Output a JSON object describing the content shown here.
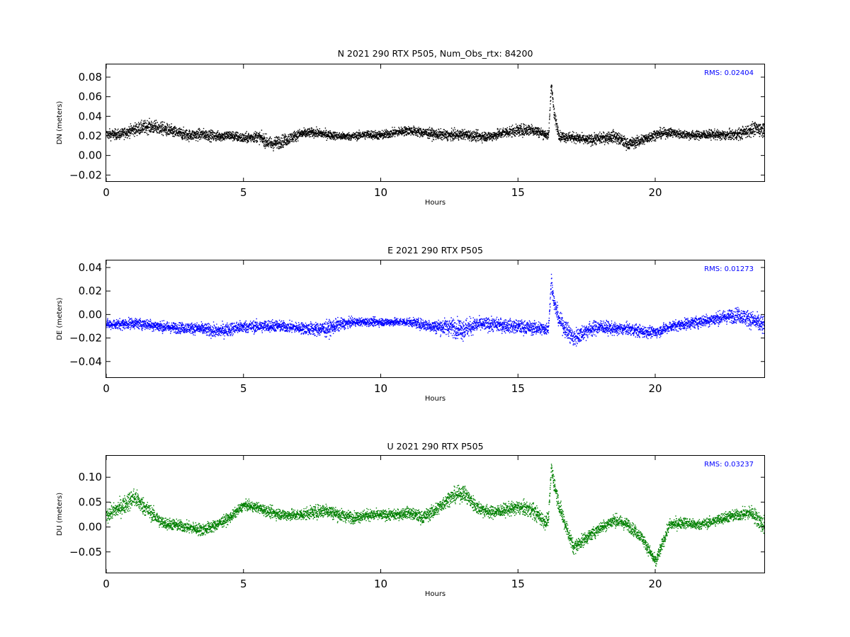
{
  "chart_data": [
    {
      "type": "scatter",
      "title": "N 2021 290 RTX  P505, Num_Obs_rtx: 84200",
      "xlabel": "Hours",
      "ylabel": "DN (meters)",
      "xlim": [
        0,
        24
      ],
      "ylim": [
        -0.027,
        0.093
      ],
      "xticks": [
        0,
        5,
        10,
        15,
        20
      ],
      "xtick_labels": [
        "0",
        "5",
        "10",
        "15",
        "20"
      ],
      "yticks": [
        -0.02,
        0.0,
        0.02,
        0.04,
        0.06,
        0.08
      ],
      "ytick_labels": [
        "−0.02",
        "0.00",
        "0.02",
        "0.04",
        "0.06",
        "0.08"
      ],
      "annotation": "RMS:  0.02404",
      "annotation_color": "#0000ff",
      "color": "#000000",
      "grid": false,
      "series": [
        {
          "x": [
            0,
            0.5,
            1.0,
            1.5,
            2.0,
            2.5,
            3.0,
            3.5,
            4.0,
            4.5,
            5.0,
            5.5,
            6.0,
            6.5,
            7.0,
            7.5,
            8.0,
            8.5,
            9.0,
            9.5,
            10.0,
            10.5,
            11.0,
            11.5,
            12.0,
            12.5,
            13.0,
            13.5,
            14.0,
            14.5,
            15.0,
            15.5,
            16.0,
            16.1,
            16.2,
            16.3,
            16.5,
            17.0,
            17.5,
            18.0,
            18.5,
            19.0,
            19.5,
            20.0,
            20.5,
            21.0,
            21.5,
            22.0,
            22.5,
            23.0,
            23.5,
            24.0
          ],
          "y": [
            0.022,
            0.022,
            0.027,
            0.03,
            0.028,
            0.024,
            0.021,
            0.022,
            0.02,
            0.021,
            0.018,
            0.02,
            0.012,
            0.016,
            0.022,
            0.024,
            0.022,
            0.02,
            0.02,
            0.022,
            0.021,
            0.024,
            0.026,
            0.024,
            0.022,
            0.021,
            0.022,
            0.02,
            0.02,
            0.024,
            0.026,
            0.027,
            0.022,
            0.02,
            0.075,
            0.042,
            0.02,
            0.019,
            0.016,
            0.018,
            0.02,
            0.012,
            0.016,
            0.022,
            0.024,
            0.022,
            0.021,
            0.022,
            0.021,
            0.022,
            0.027,
            0.028
          ],
          "spread": [
            0.009,
            0.009,
            0.011,
            0.012,
            0.012,
            0.011,
            0.01,
            0.01,
            0.009,
            0.009,
            0.009,
            0.01,
            0.012,
            0.011,
            0.009,
            0.008,
            0.008,
            0.007,
            0.007,
            0.008,
            0.008,
            0.008,
            0.008,
            0.009,
            0.009,
            0.009,
            0.009,
            0.009,
            0.009,
            0.01,
            0.01,
            0.011,
            0.008,
            0.008,
            0.012,
            0.012,
            0.009,
            0.009,
            0.009,
            0.01,
            0.011,
            0.01,
            0.01,
            0.009,
            0.008,
            0.008,
            0.008,
            0.008,
            0.009,
            0.01,
            0.012,
            0.013
          ]
        }
      ]
    },
    {
      "type": "scatter",
      "title": "E 2021 290 RTX  P505",
      "xlabel": "Hours",
      "ylabel": "DE (meters)",
      "xlim": [
        0,
        24
      ],
      "ylim": [
        -0.054,
        0.046
      ],
      "xticks": [
        0,
        5,
        10,
        15,
        20
      ],
      "xtick_labels": [
        "0",
        "5",
        "10",
        "15",
        "20"
      ],
      "yticks": [
        -0.04,
        -0.02,
        0.0,
        0.02,
        0.04
      ],
      "ytick_labels": [
        "−0.04",
        "−0.02",
        "0.00",
        "0.02",
        "0.04"
      ],
      "annotation": "RMS:  0.01273",
      "annotation_color": "#0000ff",
      "color": "#0000ff",
      "grid": false,
      "series": [
        {
          "x": [
            0,
            0.5,
            1.0,
            1.5,
            2.0,
            2.5,
            3.0,
            3.5,
            4.0,
            4.5,
            5.0,
            5.5,
            6.0,
            6.5,
            7.0,
            7.5,
            8.0,
            8.5,
            9.0,
            9.5,
            10.0,
            10.5,
            11.0,
            11.5,
            12.0,
            12.5,
            13.0,
            13.5,
            14.0,
            14.5,
            15.0,
            15.5,
            16.0,
            16.1,
            16.2,
            16.3,
            16.5,
            17.0,
            17.5,
            18.0,
            18.5,
            19.0,
            19.5,
            20.0,
            20.5,
            21.0,
            21.5,
            22.0,
            22.5,
            23.0,
            23.5,
            24.0
          ],
          "y": [
            -0.008,
            -0.008,
            -0.007,
            -0.008,
            -0.01,
            -0.011,
            -0.011,
            -0.012,
            -0.014,
            -0.012,
            -0.01,
            -0.01,
            -0.009,
            -0.01,
            -0.011,
            -0.012,
            -0.012,
            -0.008,
            -0.006,
            -0.006,
            -0.006,
            -0.006,
            -0.006,
            -0.008,
            -0.01,
            -0.01,
            -0.012,
            -0.008,
            -0.008,
            -0.009,
            -0.01,
            -0.011,
            -0.012,
            -0.01,
            0.03,
            0.01,
            -0.005,
            -0.02,
            -0.013,
            -0.01,
            -0.012,
            -0.012,
            -0.014,
            -0.015,
            -0.01,
            -0.008,
            -0.006,
            -0.004,
            -0.002,
            0.0,
            -0.004,
            -0.01
          ],
          "spread": [
            0.007,
            0.008,
            0.008,
            0.008,
            0.008,
            0.008,
            0.008,
            0.009,
            0.01,
            0.01,
            0.009,
            0.009,
            0.009,
            0.008,
            0.008,
            0.01,
            0.012,
            0.009,
            0.006,
            0.006,
            0.006,
            0.006,
            0.006,
            0.008,
            0.01,
            0.013,
            0.016,
            0.01,
            0.01,
            0.01,
            0.01,
            0.01,
            0.01,
            0.009,
            0.01,
            0.012,
            0.012,
            0.014,
            0.012,
            0.01,
            0.009,
            0.009,
            0.009,
            0.008,
            0.008,
            0.008,
            0.009,
            0.009,
            0.01,
            0.011,
            0.013,
            0.014
          ]
        }
      ]
    },
    {
      "type": "scatter",
      "title": "U 2021 290 RTX  P505",
      "xlabel": "Hours",
      "ylabel": "DU (meters)",
      "xlim": [
        0,
        24
      ],
      "ylim": [
        -0.093,
        0.143
      ],
      "xticks": [
        0,
        5,
        10,
        15,
        20
      ],
      "xtick_labels": [
        "0",
        "5",
        "10",
        "15",
        "20"
      ],
      "yticks": [
        -0.05,
        0.0,
        0.05,
        0.1
      ],
      "ytick_labels": [
        "−0.05",
        "0.00",
        "0.05",
        "0.10"
      ],
      "annotation": "RMS:  0.03237",
      "annotation_color": "#0000ff",
      "color": "#008000",
      "grid": false,
      "series": [
        {
          "x": [
            0,
            0.5,
            1.0,
            1.5,
            2.0,
            2.5,
            3.0,
            3.5,
            4.0,
            4.5,
            5.0,
            5.5,
            6.0,
            6.5,
            7.0,
            7.5,
            8.0,
            8.5,
            9.0,
            9.5,
            10.0,
            10.5,
            11.0,
            11.5,
            12.0,
            12.5,
            13.0,
            13.5,
            14.0,
            14.5,
            15.0,
            15.5,
            16.0,
            16.1,
            16.2,
            16.3,
            16.5,
            17.0,
            17.5,
            18.0,
            18.5,
            19.0,
            19.5,
            20.0,
            20.5,
            21.0,
            21.5,
            22.0,
            22.5,
            23.0,
            23.5,
            24.0
          ],
          "y": [
            0.025,
            0.04,
            0.06,
            0.035,
            0.01,
            0.005,
            0.0,
            -0.005,
            0.005,
            0.02,
            0.045,
            0.04,
            0.03,
            0.025,
            0.025,
            0.03,
            0.035,
            0.025,
            0.02,
            0.025,
            0.025,
            0.025,
            0.03,
            0.02,
            0.035,
            0.06,
            0.07,
            0.04,
            0.03,
            0.035,
            0.04,
            0.035,
            0.01,
            0.02,
            0.12,
            0.09,
            0.04,
            -0.04,
            -0.02,
            0.0,
            0.015,
            0.005,
            -0.02,
            -0.07,
            0.005,
            0.01,
            0.005,
            0.01,
            0.02,
            0.025,
            0.03,
            0.0
          ],
          "spread": [
            0.025,
            0.03,
            0.035,
            0.028,
            0.022,
            0.02,
            0.02,
            0.022,
            0.02,
            0.018,
            0.016,
            0.018,
            0.02,
            0.02,
            0.02,
            0.022,
            0.025,
            0.022,
            0.02,
            0.02,
            0.018,
            0.018,
            0.02,
            0.022,
            0.025,
            0.025,
            0.028,
            0.025,
            0.022,
            0.022,
            0.025,
            0.028,
            0.025,
            0.022,
            0.03,
            0.03,
            0.03,
            0.025,
            0.022,
            0.02,
            0.022,
            0.022,
            0.02,
            0.022,
            0.02,
            0.02,
            0.018,
            0.018,
            0.02,
            0.02,
            0.025,
            0.035
          ]
        }
      ]
    }
  ]
}
